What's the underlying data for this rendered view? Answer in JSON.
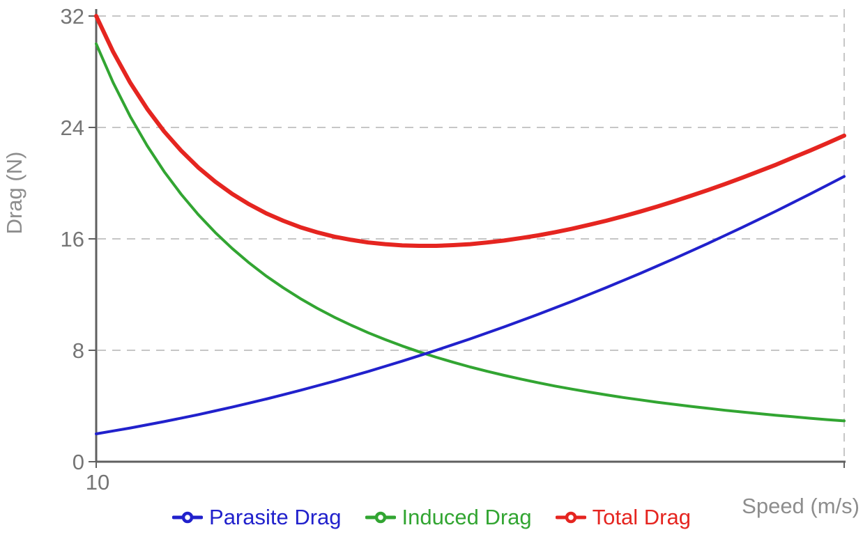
{
  "chart": {
    "background": "#ffffff",
    "axis_color": "#606060",
    "grid_color": "#c6c6c6",
    "tick_label_color": "#757575",
    "axis_title_color": "#8d8d8d"
  },
  "chart_data": {
    "type": "line",
    "title": "",
    "xlabel": "Speed (m/s)",
    "ylabel": "Drag (N)",
    "xlim": [
      10,
      32
    ],
    "ylim": [
      0,
      32
    ],
    "yticks": [
      0,
      8,
      16,
      24,
      32
    ],
    "ytick_labels": [
      "0",
      "8",
      "16",
      "24",
      "32"
    ],
    "xticks": [
      {
        "value": 10,
        "label": "10"
      },
      {
        "value": 32,
        "label": ""
      }
    ],
    "grid": "dashed horizontal lines at yticks, dashed vertical line at right edge",
    "legend_position": "bottom",
    "x": [
      10,
      10.5,
      11,
      11.5,
      12,
      12.5,
      13,
      13.5,
      14,
      14.5,
      15,
      15.5,
      16,
      16.5,
      17,
      17.5,
      18,
      18.5,
      19,
      19.5,
      20,
      20.5,
      21,
      21.5,
      22,
      22.5,
      23,
      23.5,
      24,
      24.5,
      25,
      25.5,
      26,
      26.5,
      27,
      27.5,
      28,
      28.5,
      29,
      29.5,
      30,
      30.5,
      31,
      31.5,
      32
    ],
    "series": [
      {
        "name": "Parasite Drag",
        "color": "#2121cc",
        "line_width": 4,
        "values": [
          2,
          2.21,
          2.42,
          2.65,
          2.88,
          3.13,
          3.38,
          3.65,
          3.92,
          4.21,
          4.5,
          4.81,
          5.12,
          5.45,
          5.78,
          6.13,
          6.48,
          6.85,
          7.22,
          7.61,
          8,
          8.41,
          8.82,
          9.25,
          9.68,
          10.13,
          10.58,
          11.05,
          11.52,
          12.01,
          12.5,
          13.01,
          13.52,
          14.05,
          14.58,
          15.13,
          15.68,
          16.25,
          16.82,
          17.41,
          18,
          18.61,
          19.22,
          19.85,
          20.48
        ]
      },
      {
        "name": "Induced Drag",
        "color": "#32a532",
        "line_width": 4,
        "values": [
          30,
          27.21,
          24.79,
          22.68,
          20.83,
          19.2,
          17.75,
          16.46,
          15.31,
          14.27,
          13.33,
          12.49,
          11.72,
          11.02,
          10.38,
          9.8,
          9.26,
          8.77,
          8.31,
          7.89,
          7.5,
          7.14,
          6.8,
          6.49,
          6.2,
          5.93,
          5.67,
          5.43,
          5.21,
          5,
          4.8,
          4.61,
          4.44,
          4.27,
          4.12,
          3.97,
          3.83,
          3.69,
          3.57,
          3.45,
          3.33,
          3.23,
          3.12,
          3.02,
          2.93
        ]
      },
      {
        "name": "Total Drag",
        "color": "#e52520",
        "line_width": 6,
        "values": [
          32,
          29.42,
          27.21,
          25.33,
          23.71,
          22.33,
          21.13,
          20.11,
          19.23,
          18.48,
          17.83,
          17.3,
          16.84,
          16.47,
          16.16,
          15.93,
          15.74,
          15.62,
          15.53,
          15.5,
          15.5,
          15.55,
          15.62,
          15.74,
          15.88,
          16.06,
          16.25,
          16.48,
          16.73,
          17.01,
          17.3,
          17.62,
          17.96,
          18.32,
          18.7,
          19.1,
          19.51,
          19.94,
          20.39,
          20.86,
          21.33,
          21.84,
          22.34,
          22.87,
          23.41
        ]
      }
    ]
  }
}
